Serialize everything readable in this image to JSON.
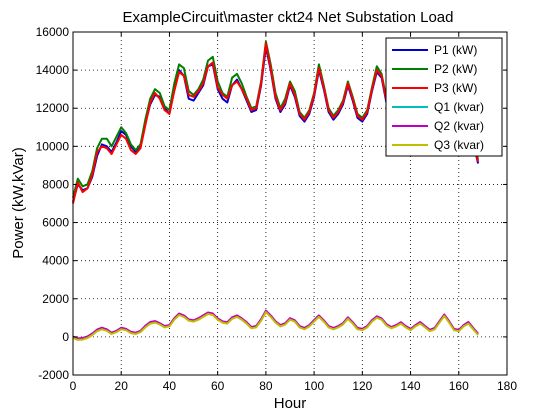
{
  "chart_data": {
    "type": "line",
    "title": "ExampleCircuit\\master ckt24 Net Substation Load",
    "xlabel": "Hour",
    "ylabel": "Power (kW,kVar)",
    "xlim": [
      0,
      180
    ],
    "ylim": [
      -2000,
      16000
    ],
    "xticks": [
      0,
      20,
      40,
      60,
      80,
      100,
      120,
      140,
      160,
      180
    ],
    "yticks": [
      -2000,
      0,
      2000,
      4000,
      6000,
      8000,
      10000,
      12000,
      14000,
      16000
    ],
    "grid": "dotted",
    "legend_position": "top-right",
    "x": [
      0,
      2,
      4,
      6,
      8,
      10,
      12,
      14,
      16,
      18,
      20,
      22,
      24,
      26,
      28,
      30,
      32,
      34,
      36,
      38,
      40,
      42,
      44,
      46,
      48,
      50,
      52,
      54,
      56,
      58,
      60,
      62,
      64,
      66,
      68,
      70,
      72,
      74,
      76,
      78,
      80,
      82,
      84,
      86,
      88,
      90,
      92,
      94,
      96,
      98,
      100,
      102,
      104,
      106,
      108,
      110,
      112,
      114,
      116,
      118,
      120,
      122,
      124,
      126,
      128,
      130,
      132,
      134,
      136,
      138,
      140,
      142,
      144,
      146,
      148,
      150,
      152,
      154,
      156,
      158,
      160,
      162,
      164,
      166,
      168
    ],
    "series": [
      {
        "name": "P1 (kW)",
        "color": "#0000cc",
        "values": [
          7100,
          8000,
          7700,
          7800,
          8400,
          9500,
          10100,
          10000,
          9700,
          10200,
          10800,
          10600,
          10000,
          9700,
          10000,
          11200,
          12200,
          12700,
          12600,
          12000,
          11700,
          13000,
          14000,
          13700,
          12500,
          12400,
          12800,
          13200,
          14200,
          14300,
          13000,
          12500,
          12300,
          13200,
          13500,
          13000,
          12400,
          11800,
          11900,
          13200,
          15200,
          14000,
          12500,
          11800,
          12200,
          13200,
          12600,
          11600,
          11300,
          11700,
          12600,
          14000,
          13000,
          11800,
          11400,
          11700,
          12200,
          13200,
          12400,
          11500,
          11300,
          11700,
          12900,
          13900,
          13600,
          12300,
          11600,
          11900,
          12300,
          11700,
          11100,
          11600,
          11800,
          11100,
          10600,
          10500,
          11300,
          12100,
          11300,
          10500,
          10300,
          10900,
          11100,
          10200,
          9100
        ]
      },
      {
        "name": "P2 (kW)",
        "color": "#008000",
        "values": [
          7300,
          8300,
          7900,
          8000,
          8700,
          9900,
          10400,
          10400,
          10000,
          10500,
          11000,
          10700,
          10100,
          9800,
          10100,
          11400,
          12500,
          13000,
          12800,
          12100,
          11900,
          13300,
          14300,
          14100,
          12900,
          12700,
          13000,
          13500,
          14500,
          14700,
          13400,
          12800,
          12600,
          13600,
          13800,
          13300,
          12600,
          12000,
          12100,
          13400,
          15500,
          14300,
          12800,
          12000,
          12500,
          13400,
          12900,
          11800,
          11500,
          11900,
          12800,
          14300,
          13200,
          12000,
          11600,
          11900,
          12400,
          13400,
          12600,
          11700,
          11500,
          11900,
          13100,
          14200,
          13800,
          12500,
          11800,
          12100,
          12500,
          11900,
          11300,
          11800,
          12000,
          11300,
          10800,
          10700,
          11500,
          12300,
          11500,
          10700,
          10500,
          11100,
          11300,
          10400,
          9300
        ]
      },
      {
        "name": "P3 (kW)",
        "color": "#ff0000",
        "values": [
          7000,
          8100,
          7600,
          7800,
          8500,
          9700,
          10000,
          9900,
          9600,
          10100,
          10600,
          10400,
          9800,
          9600,
          9900,
          11100,
          12300,
          12800,
          12500,
          11900,
          11700,
          12900,
          13900,
          13700,
          12700,
          12600,
          12900,
          13300,
          14200,
          14400,
          13100,
          12700,
          12500,
          13200,
          13400,
          13000,
          12500,
          11900,
          12000,
          13300,
          15400,
          14100,
          12600,
          11900,
          12300,
          13300,
          12700,
          11700,
          11400,
          11800,
          12700,
          14100,
          13100,
          11900,
          11500,
          11800,
          12300,
          13300,
          12500,
          11600,
          11400,
          11800,
          13000,
          14000,
          13700,
          12400,
          11700,
          12000,
          12400,
          11800,
          11200,
          11700,
          11900,
          11200,
          10700,
          10600,
          11400,
          12200,
          11400,
          10600,
          10400,
          11000,
          11200,
          10300,
          9200
        ]
      },
      {
        "name": "Q1 (kvar)",
        "color": "#00bfbf",
        "values": [
          0,
          -100,
          -80,
          0,
          150,
          350,
          450,
          380,
          200,
          300,
          450,
          400,
          250,
          200,
          300,
          550,
          750,
          800,
          700,
          550,
          600,
          950,
          1200,
          1100,
          900,
          850,
          950,
          1100,
          1250,
          1200,
          950,
          800,
          750,
          1000,
          1100,
          950,
          750,
          500,
          550,
          900,
          1350,
          1100,
          800,
          600,
          700,
          950,
          850,
          550,
          450,
          600,
          850,
          1100,
          850,
          550,
          450,
          550,
          700,
          1000,
          750,
          450,
          400,
          550,
          850,
          1050,
          950,
          650,
          500,
          600,
          750,
          550,
          400,
          600,
          750,
          550,
          350,
          450,
          800,
          1150,
          800,
          400,
          350,
          600,
          750,
          450,
          150
        ]
      },
      {
        "name": "Q2 (kvar)",
        "color": "#bf00bf",
        "values": [
          20,
          -80,
          -60,
          20,
          180,
          380,
          480,
          400,
          220,
          320,
          480,
          420,
          270,
          220,
          320,
          580,
          780,
          830,
          720,
          570,
          620,
          980,
          1230,
          1130,
          920,
          870,
          980,
          1130,
          1280,
          1230,
          970,
          820,
          770,
          1030,
          1130,
          970,
          770,
          520,
          570,
          930,
          1380,
          1130,
          820,
          620,
          720,
          980,
          870,
          570,
          470,
          620,
          880,
          1130,
          870,
          570,
          470,
          570,
          720,
          1030,
          770,
          470,
          420,
          570,
          880,
          1080,
          970,
          670,
          520,
          620,
          770,
          570,
          420,
          620,
          780,
          570,
          370,
          470,
          830,
          1180,
          830,
          420,
          370,
          620,
          780,
          470,
          170
        ]
      },
      {
        "name": "Q3 (kvar)",
        "color": "#bfbf00",
        "values": [
          -60,
          -160,
          -140,
          -60,
          100,
          300,
          400,
          320,
          150,
          250,
          400,
          350,
          200,
          150,
          250,
          500,
          700,
          750,
          650,
          500,
          550,
          900,
          1150,
          1050,
          850,
          800,
          900,
          1050,
          1200,
          1150,
          900,
          750,
          700,
          950,
          1050,
          900,
          700,
          450,
          500,
          850,
          1300,
          1050,
          750,
          550,
          650,
          900,
          800,
          500,
          400,
          550,
          800,
          1050,
          800,
          500,
          400,
          500,
          650,
          950,
          700,
          400,
          350,
          500,
          800,
          1000,
          900,
          600,
          450,
          550,
          700,
          500,
          350,
          550,
          700,
          500,
          300,
          400,
          750,
          1100,
          750,
          350,
          300,
          550,
          700,
          400,
          100
        ]
      }
    ]
  }
}
